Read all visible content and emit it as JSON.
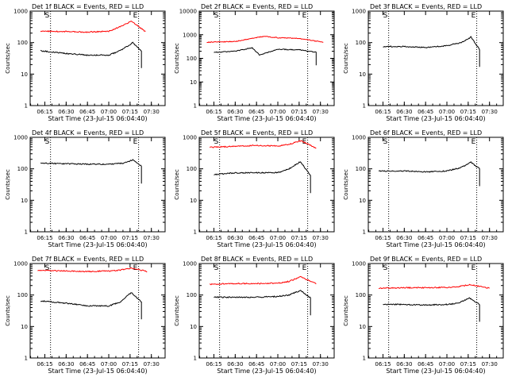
{
  "chart_data": [
    {
      "type": "line",
      "title": "Det 1f BLACK = Events, RED = LLD",
      "ylabel": "Counts/sec",
      "xlabel": "Start Time (23-Jul-15 06:04:40)",
      "yscale": "log",
      "ylim": [
        1,
        1000
      ],
      "ytick_labels": [
        "1",
        "10",
        "100",
        "1000"
      ],
      "xtick_labels": [
        "06:15",
        "06:30",
        "06:45",
        "07:00",
        "07:15",
        "07:30"
      ],
      "marker_labels": [
        "S",
        "E"
      ],
      "series": [
        {
          "color": "#ff0000",
          "x": [
            "06:12",
            "06:30",
            "06:45",
            "07:00",
            "07:08",
            "07:16",
            "07:26"
          ],
          "y": [
            230,
            225,
            215,
            230,
            320,
            480,
            220
          ]
        },
        {
          "color": "#000000",
          "x": [
            "06:12",
            "06:30",
            "06:45",
            "07:00",
            "07:08",
            "07:17",
            "07:23"
          ],
          "y": [
            55,
            45,
            40,
            40,
            55,
            100,
            55
          ]
        }
      ]
    },
    {
      "type": "line",
      "title": "Det 2f BLACK = Events, RED = LLD",
      "ylabel": "Counts/sec",
      "xlabel": "Start Time (23-Jul-15 06:04:40)",
      "yscale": "log",
      "ylim": [
        1,
        10000
      ],
      "ytick_labels": [
        "1",
        "10",
        "100",
        "1000",
        "10000"
      ],
      "xtick_labels": [
        "06:15",
        "06:30",
        "06:45",
        "07:00",
        "07:15",
        "07:30"
      ],
      "marker_labels": [
        "S",
        "E"
      ],
      "series": [
        {
          "color": "#ff0000",
          "x": [
            "06:10",
            "06:30",
            "06:42",
            "06:50",
            "07:00",
            "07:15",
            "07:32"
          ],
          "y": [
            480,
            520,
            700,
            850,
            750,
            700,
            480
          ]
        },
        {
          "color": "#000000",
          "x": [
            "06:15",
            "06:30",
            "06:42",
            "06:47",
            "07:00",
            "07:15",
            "07:27"
          ],
          "y": [
            180,
            200,
            280,
            140,
            240,
            230,
            180
          ]
        }
      ]
    },
    {
      "type": "line",
      "title": "Det 3f BLACK = Events, RED = LLD",
      "ylabel": "Counts/sec",
      "xlabel": "Start Time (23-Jul-15 06:04:40)",
      "yscale": "log",
      "ylim": [
        1,
        1000
      ],
      "ytick_labels": [
        "1",
        "10",
        "100",
        "1000"
      ],
      "xtick_labels": [
        "06:15",
        "06:30",
        "06:45",
        "07:00",
        "07:15",
        "07:30"
      ],
      "marker_labels": [
        "S",
        "E"
      ],
      "series": [
        {
          "color": "#000000",
          "x": [
            "06:15",
            "06:30",
            "06:45",
            "07:00",
            "07:10",
            "07:17",
            "07:23"
          ],
          "y": [
            75,
            75,
            70,
            80,
            100,
            150,
            60
          ]
        }
      ]
    },
    {
      "type": "line",
      "title": "Det 4f BLACK = Events, RED = LLD",
      "ylabel": "Counts/sec",
      "xlabel": "Start Time (23-Jul-15 06:04:40)",
      "yscale": "log",
      "ylim": [
        1,
        1000
      ],
      "ytick_labels": [
        "1",
        "10",
        "100",
        "1000"
      ],
      "xtick_labels": [
        "06:15",
        "06:30",
        "06:45",
        "07:00",
        "07:15",
        "07:30"
      ],
      "marker_labels": [
        "S",
        "E"
      ],
      "series": [
        {
          "color": "#000000",
          "x": [
            "06:12",
            "06:30",
            "06:45",
            "07:00",
            "07:10",
            "07:17",
            "07:23"
          ],
          "y": [
            150,
            145,
            140,
            140,
            150,
            190,
            120
          ]
        }
      ]
    },
    {
      "type": "line",
      "title": "Det 5f BLACK = Events, RED = LLD",
      "ylabel": "Counts/sec",
      "xlabel": "Start Time (23-Jul-15 06:04:40)",
      "yscale": "log",
      "ylim": [
        1,
        1000
      ],
      "ytick_labels": [
        "1",
        "10",
        "100",
        "1000"
      ],
      "xtick_labels": [
        "06:15",
        "06:30",
        "06:45",
        "07:00",
        "07:15",
        "07:30"
      ],
      "marker_labels": [
        "S",
        "E"
      ],
      "series": [
        {
          "color": "#ff0000",
          "x": [
            "06:12",
            "06:30",
            "06:45",
            "07:00",
            "07:08",
            "07:16",
            "07:27"
          ],
          "y": [
            480,
            520,
            550,
            530,
            600,
            780,
            460
          ]
        },
        {
          "color": "#000000",
          "x": [
            "06:15",
            "06:30",
            "06:45",
            "07:00",
            "07:08",
            "07:16",
            "07:23"
          ],
          "y": [
            65,
            75,
            75,
            75,
            100,
            170,
            60
          ]
        }
      ]
    },
    {
      "type": "line",
      "title": "Det 6f BLACK = Events, RED = LLD",
      "ylabel": "Counts/sec",
      "xlabel": "Start Time (23-Jul-15 06:04:40)",
      "yscale": "log",
      "ylim": [
        1,
        1000
      ],
      "ytick_labels": [
        "1",
        "10",
        "100",
        "1000"
      ],
      "xtick_labels": [
        "06:15",
        "06:30",
        "06:45",
        "07:00",
        "07:15",
        "07:30"
      ],
      "marker_labels": [
        "S",
        "E"
      ],
      "series": [
        {
          "color": "#000000",
          "x": [
            "06:12",
            "06:30",
            "06:45",
            "07:00",
            "07:10",
            "07:17",
            "07:23"
          ],
          "y": [
            85,
            85,
            80,
            85,
            110,
            160,
            100
          ]
        }
      ]
    },
    {
      "type": "line",
      "title": "Det 7f BLACK = Events, RED = LLD",
      "ylabel": "Counts/sec",
      "xlabel": "Start Time (23-Jul-15 06:04:40)",
      "yscale": "log",
      "ylim": [
        1,
        1000
      ],
      "ytick_labels": [
        "1",
        "10",
        "100",
        "1000"
      ],
      "xtick_labels": [
        "06:15",
        "06:30",
        "06:45",
        "07:00",
        "07:15",
        "07:30"
      ],
      "marker_labels": [
        "S",
        "E"
      ],
      "series": [
        {
          "color": "#ff0000",
          "x": [
            "06:10",
            "06:30",
            "06:45",
            "07:00",
            "07:08",
            "07:16",
            "07:27"
          ],
          "y": [
            600,
            580,
            560,
            580,
            620,
            720,
            560
          ]
        },
        {
          "color": "#000000",
          "x": [
            "06:12",
            "06:30",
            "06:45",
            "07:00",
            "07:08",
            "07:16",
            "07:23"
          ],
          "y": [
            65,
            55,
            45,
            45,
            60,
            120,
            60
          ]
        }
      ]
    },
    {
      "type": "line",
      "title": "Det 8f BLACK = Events, RED = LLD",
      "ylabel": "Counts/sec",
      "xlabel": "Start Time (23-Jul-15 06:04:40)",
      "yscale": "log",
      "ylim": [
        1,
        1000
      ],
      "ytick_labels": [
        "1",
        "10",
        "100",
        "1000"
      ],
      "xtick_labels": [
        "06:15",
        "06:30",
        "06:45",
        "07:00",
        "07:15",
        "07:30"
      ],
      "marker_labels": [
        "S",
        "E"
      ],
      "series": [
        {
          "color": "#ff0000",
          "x": [
            "06:12",
            "06:30",
            "06:45",
            "07:00",
            "07:08",
            "07:16",
            "07:27"
          ],
          "y": [
            220,
            230,
            230,
            240,
            270,
            380,
            230
          ]
        },
        {
          "color": "#000000",
          "x": [
            "06:15",
            "06:30",
            "06:45",
            "07:00",
            "07:08",
            "07:16",
            "07:23"
          ],
          "y": [
            85,
            85,
            85,
            90,
            100,
            140,
            80
          ]
        }
      ]
    },
    {
      "type": "line",
      "title": "Det 9f BLACK = Events, RED = LLD",
      "ylabel": "Counts/sec",
      "xlabel": "Start Time (23-Jul-15 06:04:40)",
      "yscale": "log",
      "ylim": [
        1,
        1000
      ],
      "ytick_labels": [
        "1",
        "10",
        "100",
        "1000"
      ],
      "xtick_labels": [
        "06:15",
        "06:30",
        "06:45",
        "07:00",
        "07:15",
        "07:30"
      ],
      "marker_labels": [
        "S",
        "E"
      ],
      "series": [
        {
          "color": "#ff0000",
          "x": [
            "06:12",
            "06:30",
            "06:45",
            "07:00",
            "07:08",
            "07:16",
            "07:30"
          ],
          "y": [
            165,
            170,
            170,
            175,
            185,
            215,
            165
          ]
        },
        {
          "color": "#000000",
          "x": [
            "06:15",
            "06:30",
            "06:45",
            "07:00",
            "07:08",
            "07:16",
            "07:23"
          ],
          "y": [
            50,
            50,
            48,
            50,
            55,
            80,
            50
          ]
        }
      ]
    }
  ]
}
